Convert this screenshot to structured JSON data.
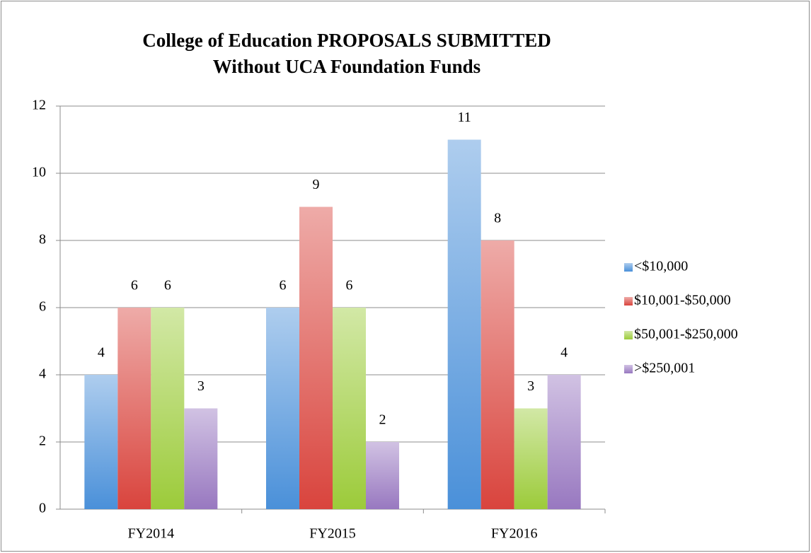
{
  "chart_data": {
    "type": "bar",
    "title": [
      "College of Education PROPOSALS SUBMITTED",
      "Without UCA Foundation Funds"
    ],
    "categories": [
      "FY2014",
      "FY2015",
      "FY2016"
    ],
    "series": [
      {
        "name": "<$10,000",
        "color": "#4a90d9",
        "values": [
          4,
          6,
          11
        ]
      },
      {
        "name": "$10,001-$50,000",
        "color": "#d9443d",
        "values": [
          6,
          9,
          8
        ]
      },
      {
        "name": "$50,001-$250,000",
        "color": "#9ccb3a",
        "values": [
          6,
          6,
          3
        ]
      },
      {
        "name": ">$250,001",
        "color": "#9878c0",
        "values": [
          3,
          2,
          4
        ]
      }
    ],
    "ylim": [
      0,
      12
    ],
    "yticks": [
      0,
      2,
      4,
      6,
      8,
      10,
      12
    ],
    "grid": true,
    "legend": "right"
  }
}
